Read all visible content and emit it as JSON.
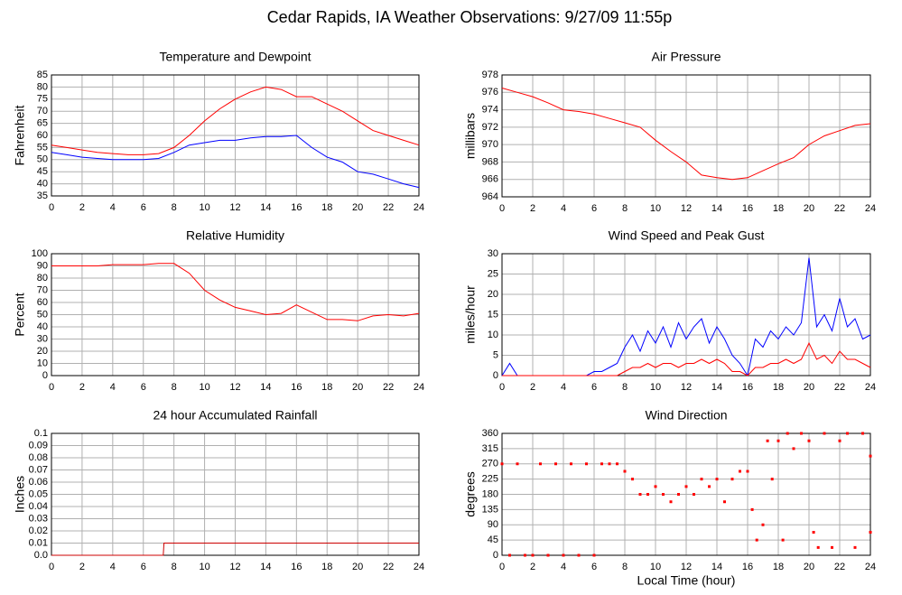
{
  "title": "Cedar Rapids, IA Weather Observations: 9/27/09 11:55p",
  "chart_data": [
    {
      "type": "line",
      "title": "Temperature and Dewpoint",
      "ylabel": "Fahrenheit",
      "x": [
        0,
        1,
        2,
        3,
        4,
        5,
        6,
        7,
        8,
        9,
        10,
        11,
        12,
        13,
        14,
        15,
        16,
        17,
        18,
        19,
        20,
        21,
        22,
        23,
        24
      ],
      "series": [
        {
          "color": "#ff0000",
          "values": [
            56,
            55,
            54,
            53,
            52.5,
            52,
            52,
            52.5,
            55,
            60,
            66,
            71,
            75,
            78,
            80,
            79,
            76,
            76,
            73,
            70,
            66,
            62,
            60,
            58,
            56
          ]
        },
        {
          "color": "#0000ff",
          "values": [
            53,
            52,
            51,
            50.5,
            50,
            50,
            50,
            50.5,
            53,
            56,
            57,
            58,
            58,
            59,
            59.5,
            59.5,
            60,
            55,
            51,
            49,
            45,
            44,
            42,
            40,
            38.5
          ]
        }
      ],
      "xlim": [
        0,
        24
      ],
      "xticks": [
        0,
        2,
        4,
        6,
        8,
        10,
        12,
        14,
        16,
        18,
        20,
        22,
        24
      ],
      "ylim": [
        35,
        85
      ],
      "yticks": [
        35,
        40,
        45,
        50,
        55,
        60,
        65,
        70,
        75,
        80,
        85
      ],
      "grid": true
    },
    {
      "type": "line",
      "title": "Air Pressure",
      "ylabel": "millibars",
      "x": [
        0,
        1,
        2,
        3,
        4,
        5,
        6,
        7,
        8,
        9,
        10,
        11,
        12,
        13,
        14,
        15,
        16,
        17,
        18,
        19,
        20,
        21,
        22,
        23,
        24
      ],
      "series": [
        {
          "color": "#ff0000",
          "values": [
            976.5,
            976,
            975.5,
            974.8,
            974,
            973.8,
            973.5,
            973,
            972.5,
            972,
            970.5,
            969.2,
            968,
            966.5,
            966.2,
            966,
            966.2,
            967,
            967.8,
            968.5,
            970,
            971,
            971.6,
            972.2,
            972.4
          ]
        }
      ],
      "xlim": [
        0,
        24
      ],
      "xticks": [
        0,
        2,
        4,
        6,
        8,
        10,
        12,
        14,
        16,
        18,
        20,
        22,
        24
      ],
      "ylim": [
        964,
        978
      ],
      "yticks": [
        964,
        966,
        968,
        970,
        972,
        974,
        976,
        978
      ],
      "grid": true
    },
    {
      "type": "line",
      "title": "Relative Humidity",
      "ylabel": "Percent",
      "x": [
        0,
        1,
        2,
        3,
        4,
        5,
        6,
        7,
        8,
        9,
        10,
        11,
        12,
        13,
        14,
        15,
        16,
        17,
        18,
        19,
        20,
        21,
        22,
        23,
        24
      ],
      "series": [
        {
          "color": "#ff0000",
          "values": [
            90,
            90,
            90,
            90,
            91,
            91,
            91,
            92,
            92,
            84,
            70,
            62,
            56,
            53,
            50,
            51,
            58,
            52,
            46,
            46,
            45,
            49,
            50,
            49,
            51
          ]
        }
      ],
      "xlim": [
        0,
        24
      ],
      "xticks": [
        0,
        2,
        4,
        6,
        8,
        10,
        12,
        14,
        16,
        18,
        20,
        22,
        24
      ],
      "ylim": [
        0,
        100
      ],
      "yticks": [
        0,
        10,
        20,
        30,
        40,
        50,
        60,
        70,
        80,
        90,
        100
      ],
      "grid": true
    },
    {
      "type": "line",
      "title": "Wind Speed and Peak Gust",
      "ylabel": "miles/hour",
      "x": [
        0,
        0.5,
        1,
        1.5,
        2,
        2.5,
        3,
        3.5,
        4,
        4.5,
        5,
        5.5,
        6,
        6.5,
        7,
        7.5,
        8,
        8.5,
        9,
        9.5,
        10,
        10.5,
        11,
        11.5,
        12,
        12.5,
        13,
        13.5,
        14,
        14.5,
        15,
        15.5,
        16,
        16.5,
        17,
        17.5,
        18,
        18.5,
        19,
        19.5,
        20,
        20.5,
        21,
        21.5,
        22,
        22.5,
        23,
        23.5,
        24
      ],
      "series": [
        {
          "color": "#0000ff",
          "values": [
            0,
            3,
            0,
            0,
            0,
            0,
            0,
            0,
            0,
            0,
            0,
            0,
            1,
            1,
            2,
            3,
            7,
            10,
            6,
            11,
            8,
            12,
            7,
            13,
            9,
            12,
            14,
            8,
            12,
            9,
            5,
            3,
            0,
            9,
            7,
            11,
            9,
            12,
            10,
            13,
            29,
            12,
            15,
            11,
            19,
            12,
            14,
            9,
            10
          ]
        },
        {
          "color": "#ff0000",
          "values": [
            0,
            0,
            0,
            0,
            0,
            0,
            0,
            0,
            0,
            0,
            0,
            0,
            0,
            0,
            0,
            0,
            1,
            2,
            2,
            3,
            2,
            3,
            3,
            2,
            3,
            3,
            4,
            3,
            4,
            3,
            1,
            1,
            0,
            2,
            2,
            3,
            3,
            4,
            3,
            4,
            8,
            4,
            5,
            3,
            6,
            4,
            4,
            3,
            2
          ]
        }
      ],
      "xlim": [
        0,
        24
      ],
      "xticks": [
        0,
        2,
        4,
        6,
        8,
        10,
        12,
        14,
        16,
        18,
        20,
        22,
        24
      ],
      "ylim": [
        0,
        30
      ],
      "yticks": [
        0,
        5,
        10,
        15,
        20,
        25,
        30
      ],
      "grid": true
    },
    {
      "type": "line",
      "title": "24 hour Accumulated Rainfall",
      "ylabel": "Inches",
      "x": [
        0,
        7.3,
        7.35,
        24
      ],
      "series": [
        {
          "color": "#cc0000",
          "values": [
            0,
            0,
            0.01,
            0.01
          ]
        }
      ],
      "xlim": [
        0,
        24
      ],
      "xticks": [
        0,
        2,
        4,
        6,
        8,
        10,
        12,
        14,
        16,
        18,
        20,
        22,
        24
      ],
      "ylim": [
        0,
        0.1
      ],
      "yticks": [
        {
          "value": 0,
          "label": "0.0"
        },
        0.01,
        0.02,
        0.03,
        0.04,
        0.05,
        0.06,
        0.07,
        0.08,
        0.09,
        0.1
      ],
      "grid": true
    },
    {
      "type": "scatter",
      "title": "Wind Direction",
      "ylabel": "degrees",
      "xlabel": "Local Time (hour)",
      "x": [
        0,
        0.5,
        1,
        1.5,
        2,
        2.5,
        3,
        3.5,
        4,
        4.5,
        5,
        5.5,
        6,
        6.5,
        7,
        7.5,
        8,
        8.5,
        9,
        9.5,
        10,
        10.5,
        11,
        11.5,
        12,
        12.5,
        13,
        13.5,
        14,
        14.5,
        15,
        15.5,
        16,
        16.3,
        16.6,
        17,
        17.3,
        17.6,
        18,
        18.3,
        18.6,
        19,
        19.5,
        20,
        20.3,
        20.6,
        21,
        21.5,
        22,
        22.5,
        23,
        23.5,
        24,
        24
      ],
      "series": [
        {
          "color": "#ff0000",
          "values": [
            270,
            0,
            270,
            0,
            0,
            270,
            0,
            270,
            0,
            270,
            0,
            270,
            0,
            270,
            270,
            270,
            248,
            225,
            180,
            180,
            203,
            180,
            158,
            180,
            203,
            180,
            225,
            203,
            225,
            158,
            225,
            248,
            248,
            135,
            45,
            90,
            338,
            225,
            338,
            45,
            360,
            315,
            360,
            338,
            68,
            23,
            360,
            23,
            338,
            360,
            23,
            360,
            293,
            68
          ]
        }
      ],
      "xlim": [
        0,
        24
      ],
      "xticks": [
        0,
        2,
        4,
        6,
        8,
        10,
        12,
        14,
        16,
        18,
        20,
        22,
        24
      ],
      "ylim": [
        0,
        360
      ],
      "yticks": [
        0,
        45,
        90,
        135,
        180,
        225,
        270,
        315,
        360
      ],
      "grid": true
    }
  ]
}
